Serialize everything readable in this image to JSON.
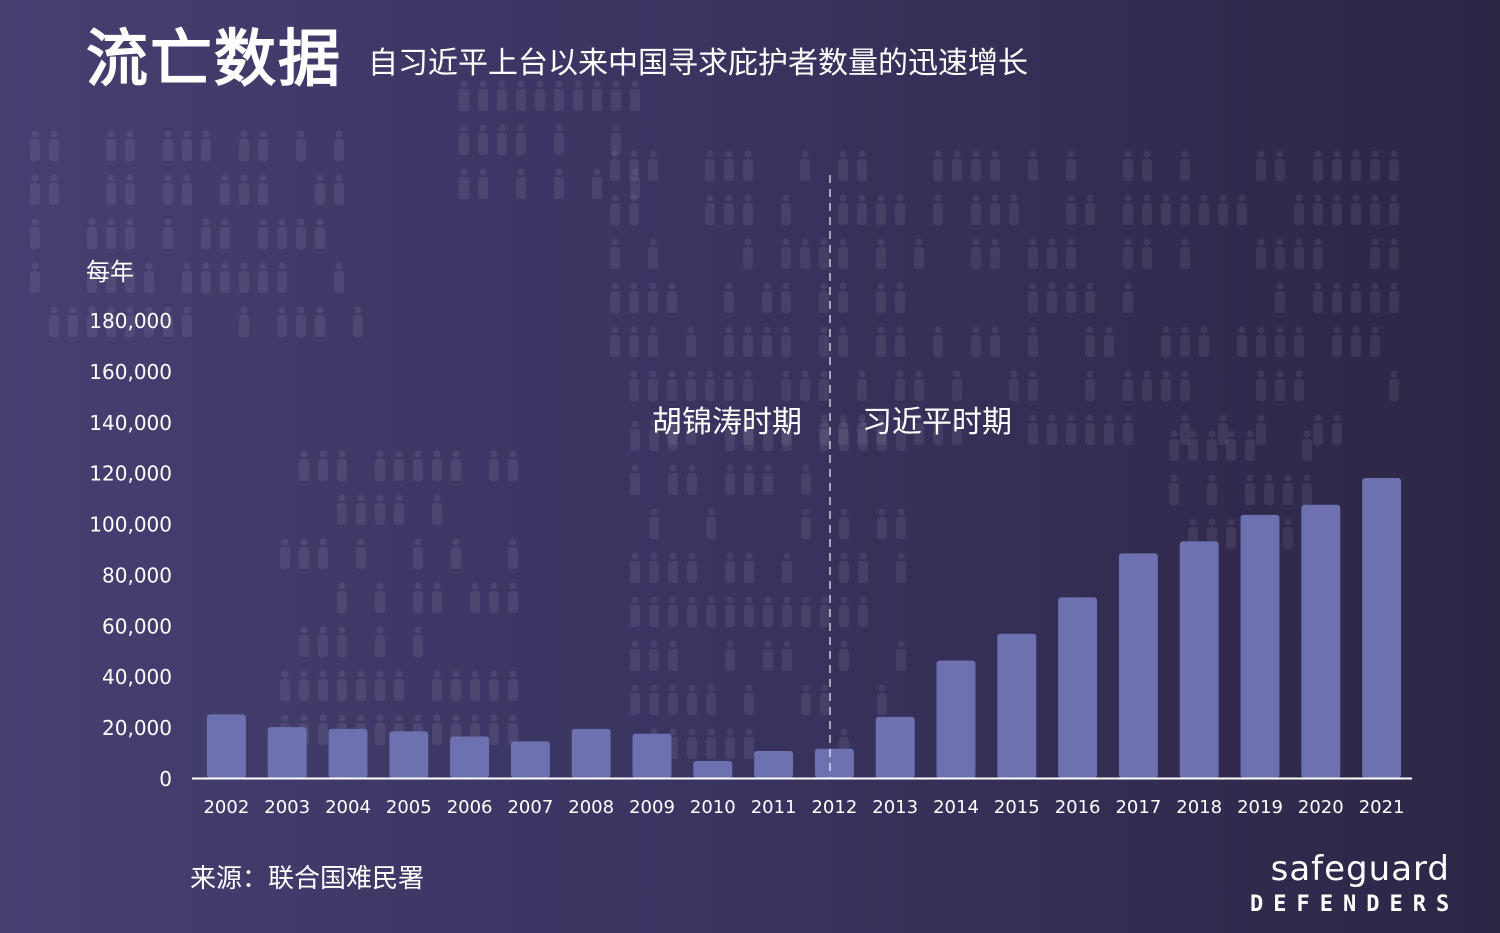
{
  "header": {
    "title": "流亡数据",
    "subtitle": "自习近平上台以来中国寻求庇护者数量的迅速增长"
  },
  "source": "来源：联合国难民署",
  "logo": {
    "line1": "safeguard",
    "line2": "DEFENDERS"
  },
  "chart_data": {
    "type": "bar",
    "ylabel": "每年",
    "ylim": [
      0,
      180000
    ],
    "yticks": [
      "0",
      "20,000",
      "40,000",
      "60,000",
      "80,000",
      "100,000",
      "120,000",
      "140,000",
      "160,000",
      "180,000"
    ],
    "ytick_values": [
      0,
      20000,
      40000,
      60000,
      80000,
      100000,
      120000,
      140000,
      160000,
      180000
    ],
    "categories": [
      "2002",
      "2003",
      "2004",
      "2005",
      "2006",
      "2007",
      "2008",
      "2009",
      "2010",
      "2011",
      "2012",
      "2013",
      "2014",
      "2015",
      "2016",
      "2017",
      "2018",
      "2019",
      "2020",
      "2021"
    ],
    "values": [
      25000,
      20000,
      19300,
      18300,
      16300,
      14400,
      19300,
      17400,
      6700,
      10600,
      11500,
      24000,
      46200,
      56700,
      71000,
      88300,
      93000,
      103400,
      107400,
      117900
    ],
    "bar_color": "#6e71b0",
    "annotations": {
      "divider_after": "2012",
      "left_era": "胡锦涛时期",
      "right_era": "习近平时期"
    }
  }
}
